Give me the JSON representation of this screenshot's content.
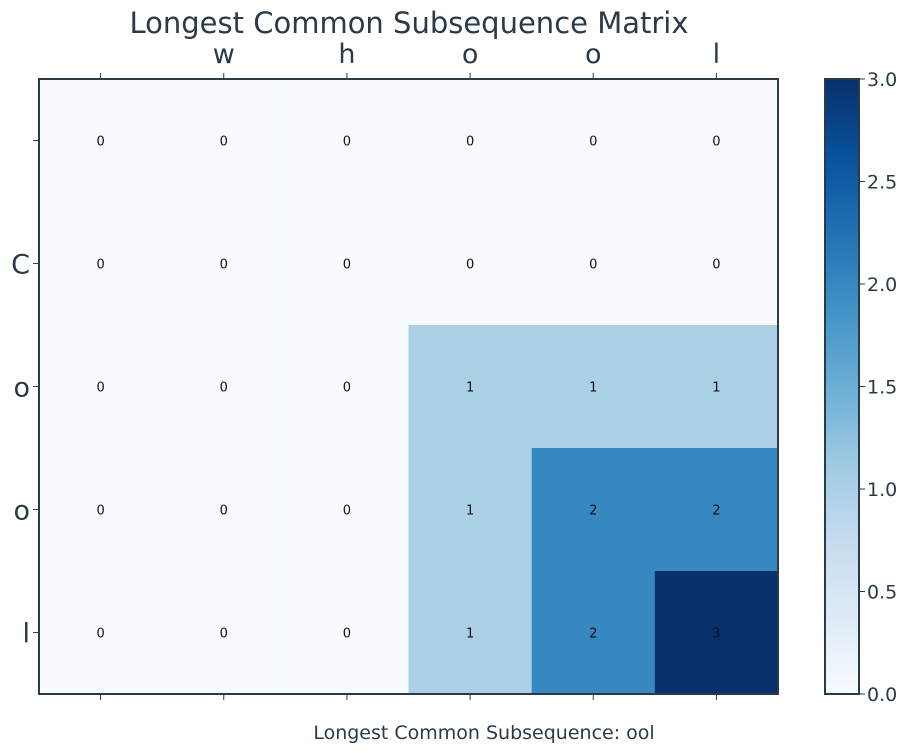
{
  "chart_data": {
    "type": "heatmap",
    "title": "Longest Common Subsequence Matrix",
    "x_categories": [
      "",
      "w",
      "h",
      "o",
      "o",
      "l"
    ],
    "y_categories": [
      "",
      "C",
      "o",
      "o",
      "l"
    ],
    "values": [
      [
        0,
        0,
        0,
        0,
        0,
        0
      ],
      [
        0,
        0,
        0,
        0,
        0,
        0
      ],
      [
        0,
        0,
        0,
        1,
        1,
        1
      ],
      [
        0,
        0,
        0,
        1,
        2,
        2
      ],
      [
        0,
        0,
        0,
        1,
        2,
        3
      ]
    ],
    "xlabel": "Longest Common Subsequence: ool",
    "colorbar": {
      "range": [
        0,
        3
      ],
      "ticks": [
        "0.0",
        "0.5",
        "1.0",
        "1.5",
        "2.0",
        "2.5",
        "3.0"
      ]
    },
    "colormap": "Blues",
    "colors": {
      "v0": "#f7fbff",
      "v1": "#abd0e6",
      "v2": "#3787c0",
      "v3": "#08306b",
      "axis": "#2b3a47"
    },
    "grid": false
  }
}
